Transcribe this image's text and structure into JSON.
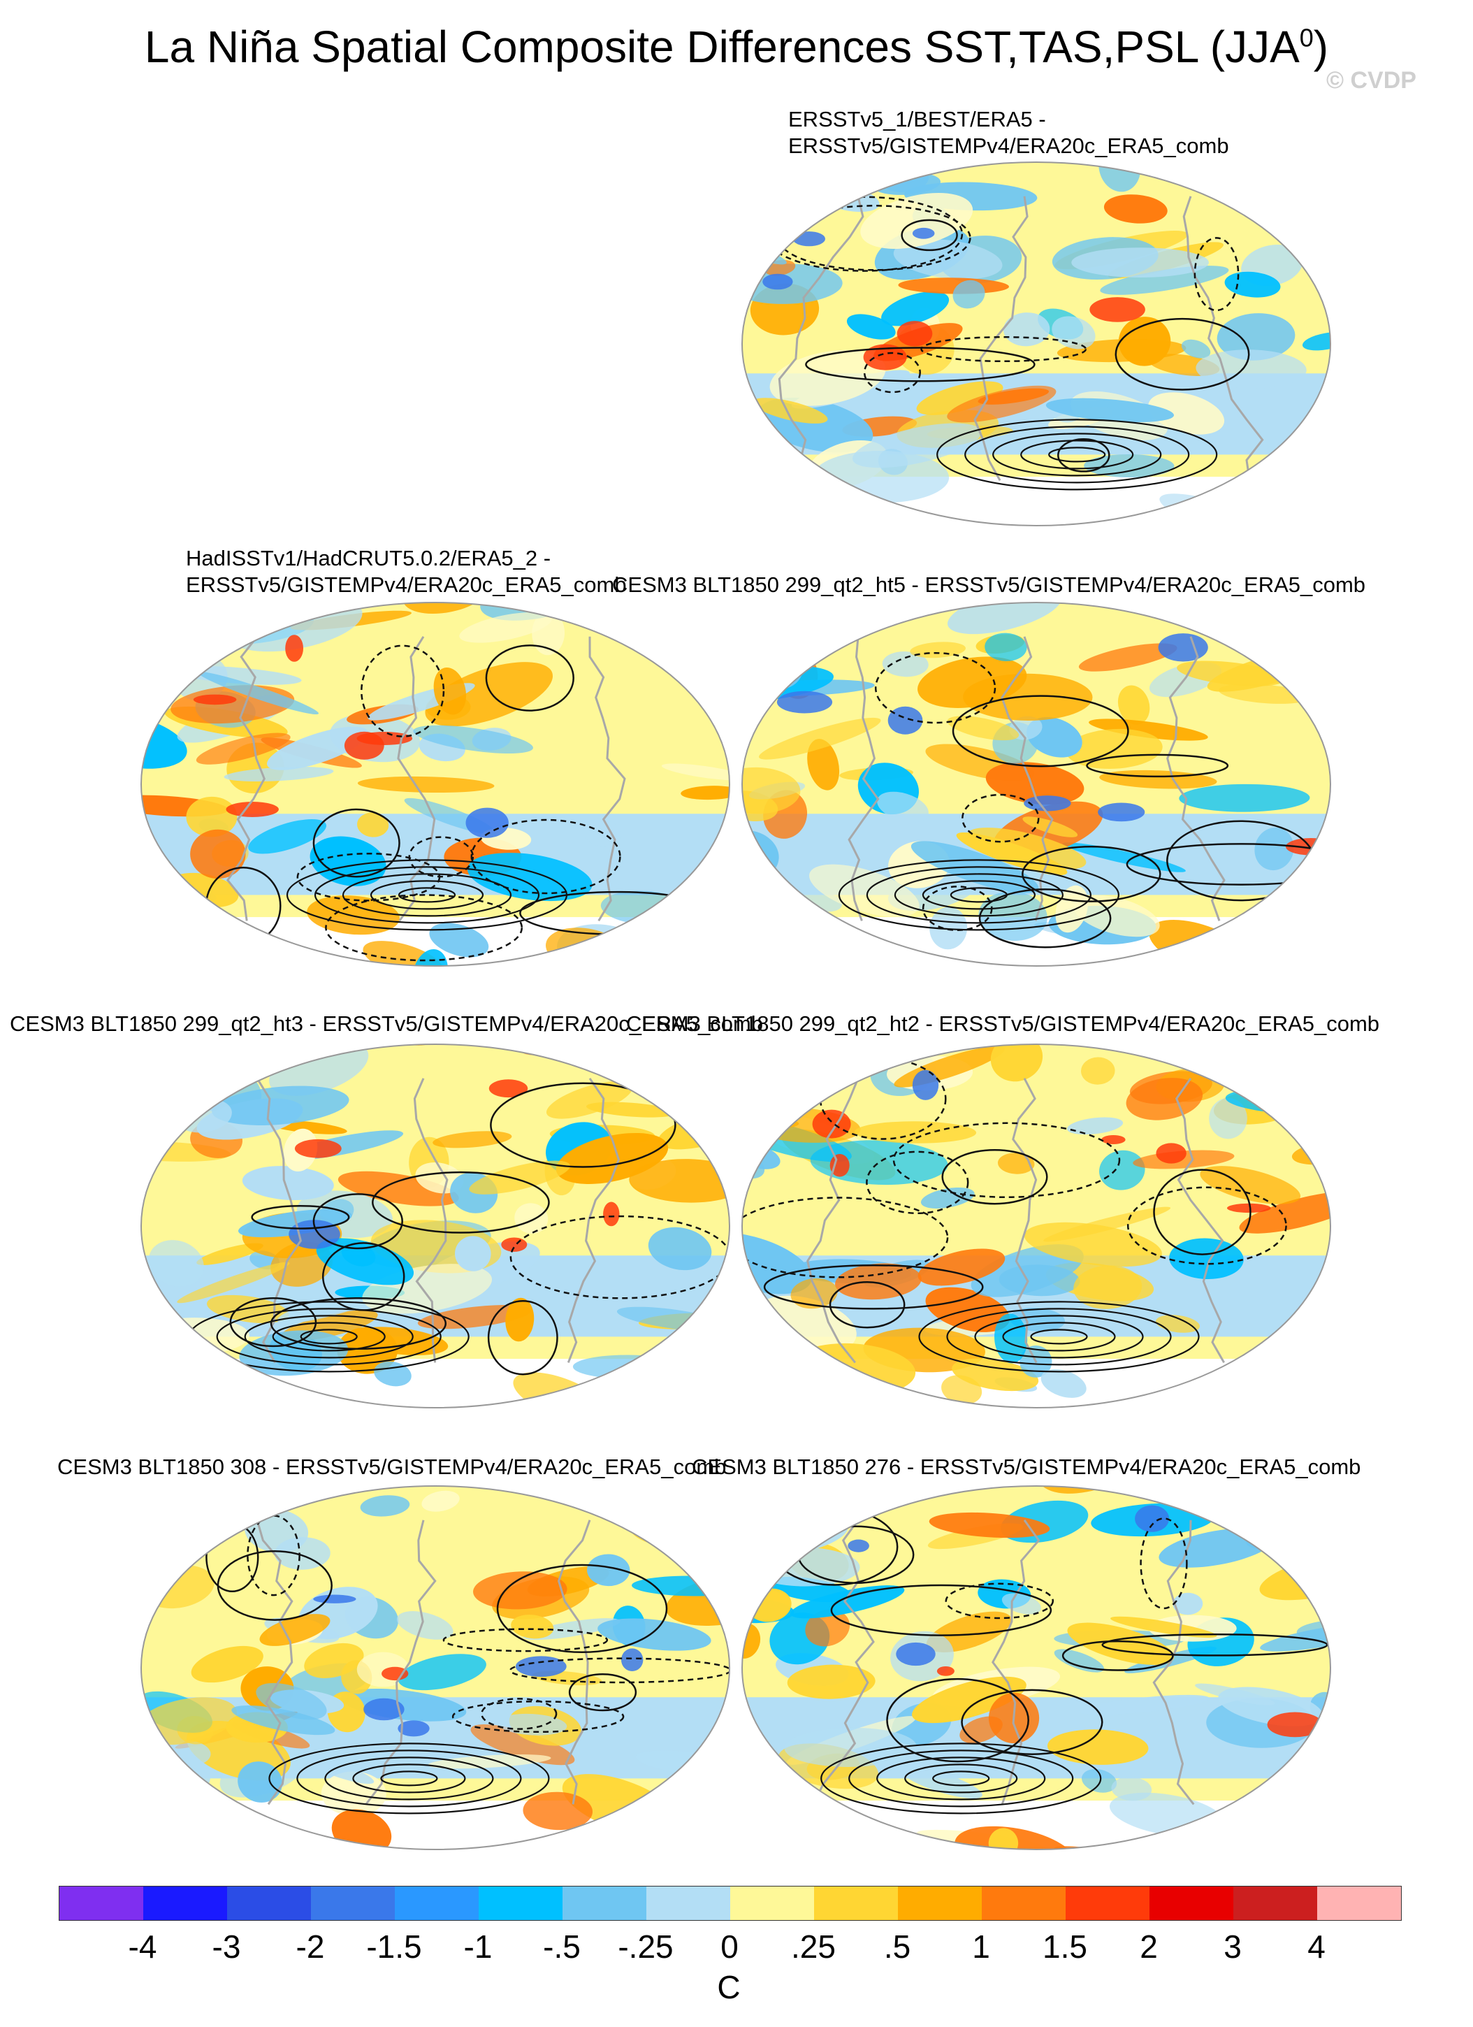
{
  "title": "La Niña Spatial Composite Differences SST,TAS,PSL (JJA",
  "title_sup": "0",
  "title_close": ")",
  "copyright": "© CVDP",
  "panels": [
    {
      "title_lines": [
        "ERSSTv5_1/BEST/ERA5 -",
        "ERSSTv5/GISTEMPv4/ERA20c_ERA5_comb"
      ]
    },
    {
      "title_lines": [
        "HadISSTv1/HadCRUT5.0.2/ERA5_2 -",
        "ERSSTv5/GISTEMPv4/ERA20c_ERA5_comb"
      ]
    },
    {
      "title_lines": [
        "CESM3 BLT1850 299_qt2_ht5 - ERSSTv5/GISTEMPv4/ERA20c_ERA5_comb"
      ]
    },
    {
      "title_lines": [
        "CESM3 BLT1850 299_qt2_ht3 - ERSSTv5/GISTEMPv4/ERA20c_ERA5_comb"
      ]
    },
    {
      "title_lines": [
        "CESM3 BLT1850 299_qt2_ht2 - ERSSTv5/GISTEMPv4/ERA20c_ERA5_comb"
      ]
    },
    {
      "title_lines": [
        "CESM3 BLT1850 308 - ERSSTv5/GISTEMPv4/ERA20c_ERA5_comb"
      ]
    },
    {
      "title_lines": [
        "CESM3 BLT1850 276 - ERSSTv5/GISTEMPv4/ERA20c_ERA5_comb"
      ]
    }
  ],
  "colorbar": {
    "colors": [
      "#7f2ff0",
      "#1a1aff",
      "#2b4de6",
      "#3a78ea",
      "#2a98ff",
      "#00c0ff",
      "#6fc6f2",
      "#b3def5",
      "#fef898",
      "#ffd633",
      "#ffac00",
      "#ff7a0d",
      "#ff3b0a",
      "#e80000",
      "#cc1f1f",
      "#ffb3b3"
    ],
    "labels": [
      "-4",
      "-3",
      "-2",
      "-1.5",
      "-1",
      "-.5",
      "-.25",
      "0",
      ".25",
      ".5",
      "1",
      "1.5",
      "2",
      "3",
      "4"
    ],
    "units": "C"
  }
}
